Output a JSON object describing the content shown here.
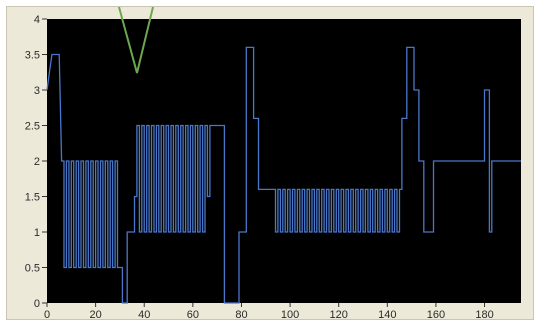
{
  "chart_data": {
    "type": "line",
    "title": "",
    "xlabel": "",
    "ylabel": "",
    "xlim": [
      0,
      195
    ],
    "ylim": [
      0,
      4
    ],
    "xticks": [
      "0",
      "20",
      "40",
      "60",
      "80",
      "100",
      "120",
      "140",
      "160",
      "180"
    ],
    "yticks": [
      "0",
      "0.5",
      "1",
      "1.5",
      "2",
      "2.5",
      "3",
      "3.5",
      "4"
    ],
    "grid": false,
    "legend": "none",
    "plot_background": "#000000",
    "frame_background": "#ece9d8",
    "series": [
      {
        "color": "#4a77c9",
        "step": true,
        "points": [
          [
            0,
            3
          ],
          [
            2,
            3.5
          ],
          [
            5,
            3.5
          ],
          [
            6,
            2
          ],
          [
            7,
            2
          ],
          [
            7,
            0.5
          ],
          [
            8,
            0.5
          ],
          [
            8,
            2
          ],
          [
            9,
            2
          ],
          [
            9,
            0.5
          ],
          [
            10,
            0.5
          ],
          [
            10,
            2
          ],
          [
            11,
            2
          ],
          [
            11,
            0.5
          ],
          [
            12,
            0.5
          ],
          [
            12,
            2
          ],
          [
            13,
            2
          ],
          [
            13,
            0.5
          ],
          [
            14,
            0.5
          ],
          [
            14,
            2
          ],
          [
            15,
            2
          ],
          [
            15,
            0.5
          ],
          [
            16,
            0.5
          ],
          [
            16,
            2
          ],
          [
            17,
            2
          ],
          [
            17,
            0.5
          ],
          [
            18,
            0.5
          ],
          [
            18,
            2
          ],
          [
            19,
            2
          ],
          [
            19,
            0.5
          ],
          [
            20,
            0.5
          ],
          [
            20,
            2
          ],
          [
            21,
            2
          ],
          [
            21,
            0.5
          ],
          [
            22,
            0.5
          ],
          [
            22,
            2
          ],
          [
            23,
            2
          ],
          [
            23,
            0.5
          ],
          [
            24,
            0.5
          ],
          [
            24,
            2
          ],
          [
            25,
            2
          ],
          [
            25,
            0.5
          ],
          [
            26,
            0.5
          ],
          [
            26,
            2
          ],
          [
            27,
            2
          ],
          [
            27,
            0.5
          ],
          [
            28,
            0.5
          ],
          [
            28,
            2
          ],
          [
            29,
            2
          ],
          [
            29,
            0.5
          ],
          [
            30,
            0.5
          ],
          [
            31,
            0.5
          ],
          [
            31,
            0
          ],
          [
            33,
            0
          ],
          [
            33,
            1
          ],
          [
            36,
            1
          ],
          [
            36,
            1.5
          ],
          [
            37,
            1.5
          ],
          [
            37,
            2.5
          ],
          [
            38,
            2.5
          ],
          [
            38,
            1
          ],
          [
            39,
            1
          ],
          [
            39,
            2.5
          ],
          [
            40,
            2.5
          ],
          [
            40,
            1
          ],
          [
            41,
            1
          ],
          [
            41,
            2.5
          ],
          [
            42,
            2.5
          ],
          [
            42,
            1
          ],
          [
            43,
            1
          ],
          [
            43,
            2.5
          ],
          [
            44,
            2.5
          ],
          [
            44,
            1
          ],
          [
            45,
            1
          ],
          [
            45,
            2.5
          ],
          [
            46,
            2.5
          ],
          [
            46,
            1
          ],
          [
            47,
            1
          ],
          [
            47,
            2.5
          ],
          [
            48,
            2.5
          ],
          [
            48,
            1
          ],
          [
            49,
            1
          ],
          [
            49,
            2.5
          ],
          [
            50,
            2.5
          ],
          [
            50,
            1
          ],
          [
            51,
            1
          ],
          [
            51,
            2.5
          ],
          [
            52,
            2.5
          ],
          [
            52,
            1
          ],
          [
            53,
            1
          ],
          [
            53,
            2.5
          ],
          [
            54,
            2.5
          ],
          [
            54,
            1
          ],
          [
            55,
            1
          ],
          [
            55,
            2.5
          ],
          [
            56,
            2.5
          ],
          [
            56,
            1
          ],
          [
            57,
            1
          ],
          [
            57,
            2.5
          ],
          [
            58,
            2.5
          ],
          [
            58,
            1
          ],
          [
            59,
            1
          ],
          [
            59,
            2.5
          ],
          [
            60,
            2.5
          ],
          [
            60,
            1
          ],
          [
            61,
            1
          ],
          [
            61,
            2.5
          ],
          [
            62,
            2.5
          ],
          [
            62,
            1
          ],
          [
            63,
            1
          ],
          [
            63,
            2.5
          ],
          [
            64,
            2.5
          ],
          [
            64,
            1
          ],
          [
            65,
            1
          ],
          [
            65,
            2.5
          ],
          [
            66,
            2.5
          ],
          [
            66,
            1.5
          ],
          [
            67,
            1.5
          ],
          [
            67,
            2.5
          ],
          [
            73,
            2.5
          ],
          [
            73,
            0
          ],
          [
            79,
            0
          ],
          [
            79,
            1
          ],
          [
            82,
            1
          ],
          [
            82,
            3.6
          ],
          [
            85,
            3.6
          ],
          [
            85,
            2.6
          ],
          [
            87,
            2.6
          ],
          [
            87,
            1.6
          ],
          [
            94,
            1.6
          ],
          [
            94,
            1
          ],
          [
            95,
            1
          ],
          [
            95,
            1.6
          ],
          [
            96,
            1.6
          ],
          [
            96,
            1
          ],
          [
            97,
            1
          ],
          [
            97,
            1.6
          ],
          [
            98,
            1.6
          ],
          [
            98,
            1
          ],
          [
            99,
            1
          ],
          [
            99,
            1.6
          ],
          [
            100,
            1.6
          ],
          [
            100,
            1
          ],
          [
            101,
            1
          ],
          [
            101,
            1.6
          ],
          [
            102,
            1.6
          ],
          [
            102,
            1
          ],
          [
            103,
            1
          ],
          [
            103,
            1.6
          ],
          [
            104,
            1.6
          ],
          [
            104,
            1
          ],
          [
            105,
            1
          ],
          [
            105,
            1.6
          ],
          [
            106,
            1.6
          ],
          [
            106,
            1
          ],
          [
            107,
            1
          ],
          [
            107,
            1.6
          ],
          [
            108,
            1.6
          ],
          [
            108,
            1
          ],
          [
            109,
            1
          ],
          [
            109,
            1.6
          ],
          [
            110,
            1.6
          ],
          [
            110,
            1
          ],
          [
            111,
            1
          ],
          [
            111,
            1.6
          ],
          [
            112,
            1.6
          ],
          [
            112,
            1
          ],
          [
            113,
            1
          ],
          [
            113,
            1.6
          ],
          [
            114,
            1.6
          ],
          [
            114,
            1
          ],
          [
            115,
            1
          ],
          [
            115,
            1.6
          ],
          [
            116,
            1.6
          ],
          [
            116,
            1
          ],
          [
            117,
            1
          ],
          [
            117,
            1.6
          ],
          [
            118,
            1.6
          ],
          [
            118,
            1
          ],
          [
            119,
            1
          ],
          [
            119,
            1.6
          ],
          [
            120,
            1.6
          ],
          [
            120,
            1
          ],
          [
            121,
            1
          ],
          [
            121,
            1.6
          ],
          [
            122,
            1.6
          ],
          [
            122,
            1
          ],
          [
            123,
            1
          ],
          [
            123,
            1.6
          ],
          [
            124,
            1.6
          ],
          [
            124,
            1
          ],
          [
            125,
            1
          ],
          [
            125,
            1.6
          ],
          [
            126,
            1.6
          ],
          [
            126,
            1
          ],
          [
            127,
            1
          ],
          [
            127,
            1.6
          ],
          [
            128,
            1.6
          ],
          [
            128,
            1
          ],
          [
            129,
            1
          ],
          [
            129,
            1.6
          ],
          [
            130,
            1.6
          ],
          [
            130,
            1
          ],
          [
            131,
            1
          ],
          [
            131,
            1.6
          ],
          [
            132,
            1.6
          ],
          [
            132,
            1
          ],
          [
            133,
            1
          ],
          [
            133,
            1.6
          ],
          [
            134,
            1.6
          ],
          [
            134,
            1
          ],
          [
            135,
            1
          ],
          [
            135,
            1.6
          ],
          [
            136,
            1.6
          ],
          [
            136,
            1
          ],
          [
            137,
            1
          ],
          [
            137,
            1.6
          ],
          [
            138,
            1.6
          ],
          [
            138,
            1
          ],
          [
            139,
            1
          ],
          [
            139,
            1.6
          ],
          [
            140,
            1.6
          ],
          [
            140,
            1
          ],
          [
            141,
            1
          ],
          [
            141,
            1.6
          ],
          [
            142,
            1.6
          ],
          [
            142,
            1
          ],
          [
            143,
            1
          ],
          [
            143,
            1.6
          ],
          [
            144,
            1.6
          ],
          [
            144,
            1
          ],
          [
            145,
            1
          ],
          [
            145,
            1.6
          ],
          [
            146,
            1.6
          ],
          [
            146,
            2.6
          ],
          [
            148,
            2.6
          ],
          [
            148,
            3.6
          ],
          [
            151,
            3.6
          ],
          [
            151,
            3
          ],
          [
            153,
            3
          ],
          [
            153,
            2
          ],
          [
            155,
            2
          ],
          [
            155,
            1
          ],
          [
            159,
            1
          ],
          [
            159,
            2
          ],
          [
            180,
            2
          ],
          [
            180,
            3
          ],
          [
            182,
            3
          ],
          [
            182,
            1
          ],
          [
            183,
            1
          ],
          [
            183,
            2
          ],
          [
            195,
            2
          ]
        ]
      }
    ]
  },
  "annotation": {
    "color": "#6aa84f"
  }
}
